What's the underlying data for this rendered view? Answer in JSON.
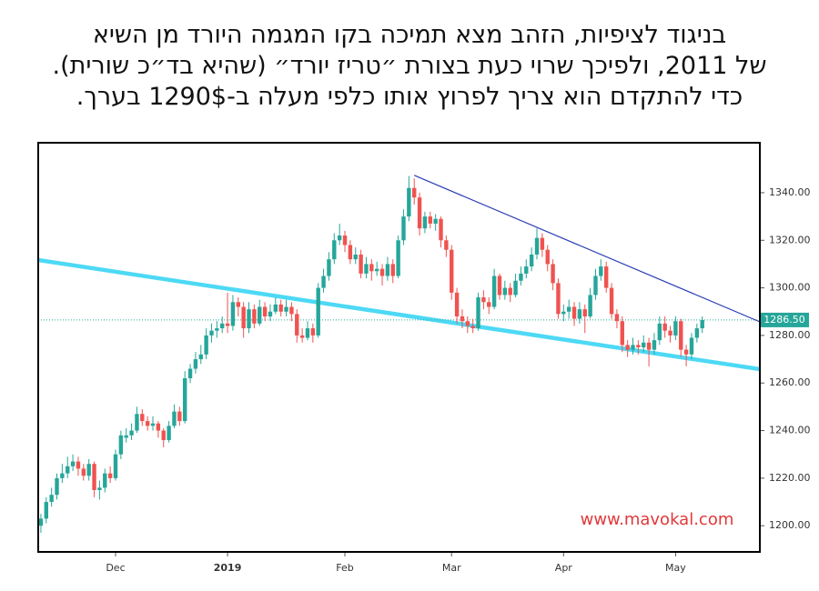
{
  "chart_data": {
    "type": "candlestick",
    "title": [
      "בניגוד לציפיות, הזהב מצא תמיכה בקו המגמה היורד מן השיא",
      "של 2011, ולפיכך שרוי כעת בצורת ״טריז יורד״ (שהיא בד״כ שורית).",
      "כדי להתקדם הוא צריך לפרוץ אותו כלפי מעלה ב-1290$ בערך."
    ],
    "annotation": "www.mavokal.com",
    "up_color": "#26a69a",
    "down_color": "#ef5350",
    "open": [
      1200,
      1203,
      1210,
      1213,
      1220,
      1222,
      1225,
      1227,
      1224,
      1221,
      1226,
      1215,
      1216,
      1222,
      1220,
      1230,
      1237,
      1238,
      1240,
      1247,
      1244,
      1242,
      1243,
      1240,
      1236,
      1242,
      1248,
      1244,
      1262,
      1266,
      1270,
      1272,
      1280,
      1282,
      1283,
      1285,
      1284,
      1294,
      1292,
      1283,
      1291,
      1285,
      1292,
      1288,
      1290,
      1293,
      1290,
      1292,
      1289,
      1280,
      1279,
      1283,
      1280,
      1300,
      1305,
      1312,
      1320,
      1322,
      1318,
      1312,
      1314,
      1306,
      1310,
      1307,
      1308,
      1305,
      1310,
      1305,
      1320,
      1330,
      1342,
      1338,
      1325,
      1330,
      1327,
      1329,
      1320,
      1316,
      1298,
      1288,
      1286,
      1284,
      1283,
      1296,
      1294,
      1292,
      1305,
      1297,
      1300,
      1297,
      1303,
      1306,
      1309,
      1314,
      1321,
      1316,
      1310,
      1302,
      1289,
      1290,
      1292,
      1287,
      1291,
      1288,
      1297,
      1305,
      1309,
      1300,
      1289,
      1286,
      1276,
      1274,
      1276,
      1275,
      1277,
      1274,
      1278,
      1285,
      1282,
      1280,
      1286,
      1274,
      1272,
      1279,
      1283
    ],
    "high": [
      1205,
      1212,
      1216,
      1222,
      1226,
      1229,
      1230,
      1229,
      1226,
      1228,
      1227,
      1219,
      1224,
      1225,
      1232,
      1240,
      1241,
      1243,
      1250,
      1249,
      1246,
      1246,
      1244,
      1241,
      1244,
      1251,
      1250,
      1265,
      1268,
      1273,
      1276,
      1283,
      1285,
      1286,
      1288,
      1298,
      1297,
      1296,
      1294,
      1294,
      1293,
      1295,
      1294,
      1293,
      1296,
      1295,
      1295,
      1294,
      1291,
      1283,
      1286,
      1285,
      1302,
      1308,
      1315,
      1323,
      1327,
      1324,
      1320,
      1317,
      1316,
      1313,
      1312,
      1311,
      1310,
      1313,
      1312,
      1322,
      1333,
      1347,
      1346,
      1340,
      1332,
      1332,
      1331,
      1330,
      1322,
      1318,
      1300,
      1291,
      1288,
      1287,
      1298,
      1299,
      1296,
      1308,
      1306,
      1303,
      1302,
      1306,
      1309,
      1312,
      1317,
      1325,
      1323,
      1318,
      1312,
      1304,
      1293,
      1295,
      1294,
      1294,
      1293,
      1300,
      1308,
      1312,
      1311,
      1302,
      1291,
      1288,
      1278,
      1279,
      1278,
      1280,
      1279,
      1281,
      1288,
      1288,
      1284,
      1288,
      1287,
      1276,
      1281,
      1285,
      1288
    ],
    "low": [
      1197,
      1201,
      1208,
      1211,
      1218,
      1220,
      1223,
      1221,
      1219,
      1219,
      1212,
      1211,
      1214,
      1218,
      1219,
      1228,
      1235,
      1236,
      1239,
      1242,
      1240,
      1240,
      1237,
      1233,
      1235,
      1241,
      1242,
      1243,
      1260,
      1264,
      1268,
      1270,
      1277,
      1279,
      1281,
      1281,
      1282,
      1288,
      1279,
      1281,
      1283,
      1284,
      1286,
      1286,
      1289,
      1288,
      1288,
      1286,
      1277,
      1277,
      1278,
      1277,
      1279,
      1298,
      1303,
      1310,
      1318,
      1315,
      1310,
      1310,
      1304,
      1304,
      1303,
      1305,
      1301,
      1303,
      1302,
      1304,
      1318,
      1328,
      1335,
      1322,
      1323,
      1325,
      1324,
      1317,
      1313,
      1295,
      1285,
      1283,
      1281,
      1281,
      1282,
      1291,
      1289,
      1291,
      1295,
      1295,
      1294,
      1296,
      1301,
      1304,
      1307,
      1312,
      1313,
      1307,
      1299,
      1287,
      1286,
      1287,
      1284,
      1285,
      1281,
      1287,
      1295,
      1303,
      1298,
      1287,
      1283,
      1273,
      1271,
      1272,
      1272,
      1273,
      1267,
      1272,
      1276,
      1279,
      1277,
      1278,
      1271,
      1267,
      1270,
      1277,
      1281
    ],
    "close": [
      1203,
      1210,
      1213,
      1220,
      1222,
      1225,
      1227,
      1224,
      1221,
      1226,
      1215,
      1216,
      1222,
      1220,
      1230,
      1238,
      1238,
      1240,
      1247,
      1244,
      1242,
      1243,
      1240,
      1236,
      1242,
      1248,
      1244,
      1262,
      1266,
      1270,
      1272,
      1280,
      1282,
      1283,
      1285,
      1284,
      1294,
      1292,
      1283,
      1291,
      1285,
      1292,
      1288,
      1290,
      1293,
      1290,
      1292,
      1289,
      1280,
      1279,
      1283,
      1280,
      1300,
      1305,
      1312,
      1320,
      1322,
      1318,
      1312,
      1314,
      1306,
      1310,
      1307,
      1308,
      1305,
      1310,
      1305,
      1320,
      1330,
      1342,
      1338,
      1325,
      1330,
      1327,
      1329,
      1320,
      1316,
      1298,
      1288,
      1286,
      1284,
      1283,
      1296,
      1294,
      1292,
      1305,
      1297,
      1300,
      1297,
      1303,
      1306,
      1309,
      1314,
      1321,
      1316,
      1310,
      1302,
      1289,
      1290,
      1292,
      1287,
      1291,
      1288,
      1297,
      1305,
      1309,
      1300,
      1289,
      1286,
      1276,
      1274,
      1276,
      1275,
      1277,
      1274,
      1278,
      1285,
      1282,
      1280,
      1286,
      1274,
      1272,
      1279,
      1283,
      1286.5
    ],
    "xlim": [
      -0.5,
      134.8
    ],
    "xticks": [
      {
        "value": 14,
        "label": "Dec"
      },
      {
        "value": 35,
        "label": "2019"
      },
      {
        "value": 57,
        "label": "Feb"
      },
      {
        "value": 77,
        "label": "Mar"
      },
      {
        "value": 98,
        "label": "Apr"
      },
      {
        "value": 119,
        "label": "May"
      }
    ],
    "ylim": [
      1189,
      1361
    ],
    "yticks": [
      {
        "value": 1200,
        "label": "1200.00"
      },
      {
        "value": 1220,
        "label": "1220.00"
      },
      {
        "value": 1240,
        "label": "1240.00"
      },
      {
        "value": 1260,
        "label": "1260.00"
      },
      {
        "value": 1280,
        "label": "1280.00"
      },
      {
        "value": 1300,
        "label": "1300.00"
      },
      {
        "value": 1320,
        "label": "1320.00"
      },
      {
        "value": 1340,
        "label": "1340.00"
      }
    ],
    "last_price": {
      "value": 1286.5,
      "label": "1286.50"
    },
    "trendlines": [
      {
        "color": "#4dd9f5",
        "x": [
          -0.5,
          134.8
        ],
        "values": [
          1311.7,
          1265.8
        ]
      },
      {
        "color": "#2a3fb5",
        "x": [
          70,
          134.8
        ],
        "values": [
          1347.3,
          1285.7
        ]
      }
    ]
  }
}
